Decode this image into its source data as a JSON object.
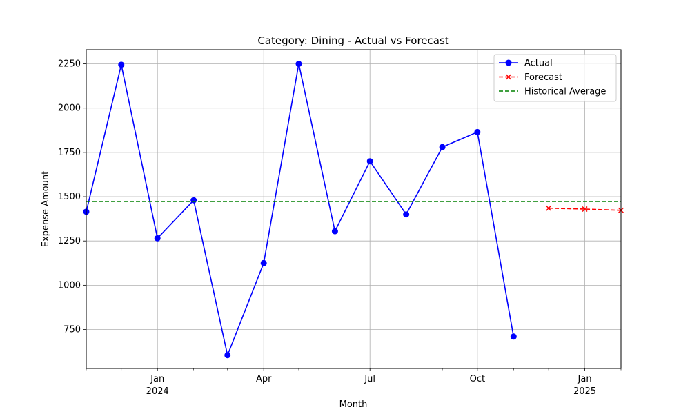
{
  "chart_data": {
    "type": "line",
    "title": "Category: Dining - Actual vs Forecast",
    "xlabel": "Month",
    "ylabel": "Expense Amount",
    "xlim": [
      "2023-11-01",
      "2025-02-01"
    ],
    "ylim": [
      530,
      2330
    ],
    "grid": true,
    "legend_position": "top-right",
    "x_ticks": [
      {
        "date": "2024-01-01",
        "label": "Jan",
        "sublabel": "2024"
      },
      {
        "date": "2024-04-01",
        "label": "Apr",
        "sublabel": ""
      },
      {
        "date": "2024-07-01",
        "label": "Jul",
        "sublabel": ""
      },
      {
        "date": "2024-10-01",
        "label": "Oct",
        "sublabel": ""
      },
      {
        "date": "2025-01-01",
        "label": "Jan",
        "sublabel": "2025"
      }
    ],
    "y_ticks": [
      750,
      1000,
      1250,
      1500,
      1750,
      2000,
      2250
    ],
    "series": [
      {
        "name": "Actual",
        "color": "#0000ff",
        "style": "solid",
        "marker": "circle",
        "x": [
          "2023-11-01",
          "2023-12-01",
          "2024-01-01",
          "2024-02-01",
          "2024-03-01",
          "2024-04-01",
          "2024-05-01",
          "2024-06-01",
          "2024-07-01",
          "2024-08-01",
          "2024-09-01",
          "2024-10-01",
          "2024-11-01"
        ],
        "y": [
          1415,
          2245,
          1265,
          1480,
          605,
          1125,
          2250,
          1305,
          1700,
          1400,
          1780,
          1865,
          710
        ]
      },
      {
        "name": "Forecast",
        "color": "#ff0000",
        "style": "dashed",
        "marker": "x",
        "x": [
          "2024-12-01",
          "2025-01-01",
          "2025-02-01"
        ],
        "y": [
          1435,
          1430,
          1423
        ]
      },
      {
        "name": "Historical Average",
        "color": "#008000",
        "style": "dashed",
        "marker": "none",
        "type": "hline",
        "y": 1473
      }
    ]
  }
}
